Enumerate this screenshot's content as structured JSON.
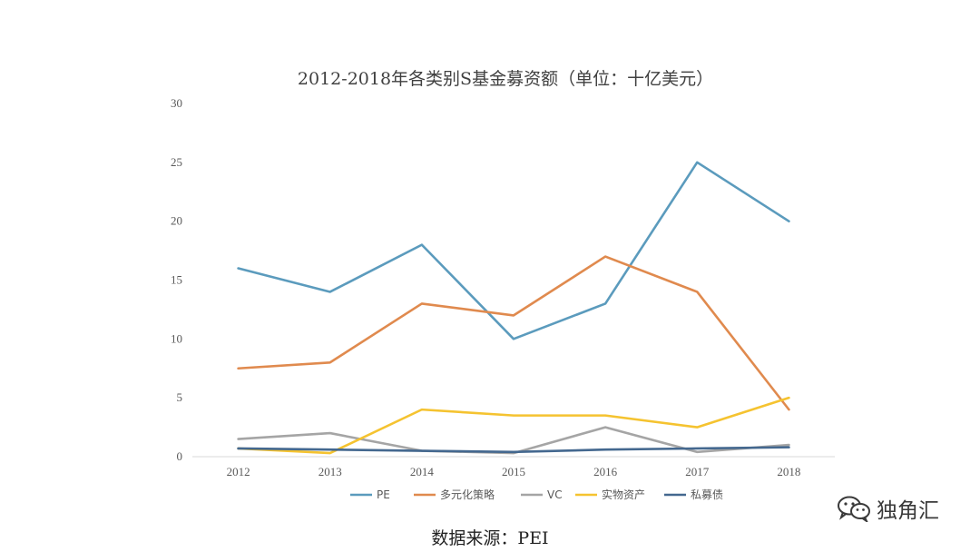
{
  "chart_data": {
    "type": "line",
    "title": "2012-2018年各类别S基金募资额（单位：十亿美元）",
    "x": [
      "2012",
      "2013",
      "2014",
      "2015",
      "2016",
      "2017",
      "2018"
    ],
    "ylim": [
      0,
      30
    ],
    "yticks": [
      0,
      5,
      10,
      15,
      20,
      25,
      30
    ],
    "grid": false,
    "legend_position": "bottom",
    "series": [
      {
        "name": "PE",
        "color": "#5b9bbd",
        "values": [
          16,
          14,
          18,
          10,
          13,
          25,
          20
        ]
      },
      {
        "name": "多元化策略",
        "color": "#e08a4e",
        "values": [
          7.5,
          8,
          13,
          12,
          17,
          14,
          4
        ]
      },
      {
        "name": "VC",
        "color": "#a5a5a5",
        "values": [
          1.5,
          2,
          0.5,
          0.3,
          2.5,
          0.4,
          1
        ]
      },
      {
        "name": "实物资产",
        "color": "#f5c330",
        "values": [
          0.7,
          0.3,
          4,
          3.5,
          3.5,
          2.5,
          5
        ]
      },
      {
        "name": "私募债",
        "color": "#44688f",
        "values": [
          0.7,
          0.6,
          0.5,
          0.4,
          0.6,
          0.7,
          0.8
        ]
      }
    ]
  },
  "source_note": "数据来源：PEI",
  "watermark": {
    "icon": "wechat-icon",
    "text": "独角汇"
  }
}
